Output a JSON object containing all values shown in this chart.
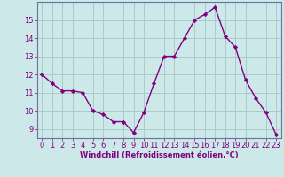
{
  "hours": [
    0,
    1,
    2,
    3,
    4,
    5,
    6,
    7,
    8,
    9,
    10,
    11,
    12,
    13,
    14,
    15,
    16,
    17,
    18,
    19,
    20,
    21,
    22,
    23
  ],
  "values": [
    12.0,
    11.5,
    11.1,
    11.1,
    11.0,
    10.0,
    9.8,
    9.4,
    9.4,
    8.8,
    9.9,
    11.5,
    13.0,
    13.0,
    14.0,
    15.0,
    15.3,
    15.7,
    14.1,
    13.5,
    11.7,
    10.7,
    9.9,
    8.7
  ],
  "line_color": "#800080",
  "marker": "D",
  "markersize": 2.2,
  "linewidth": 1.0,
  "bg_color": "#cce8e8",
  "grid_color": "#aacaca",
  "xlabel": "Windchill (Refroidissement éolien,°C)",
  "xlabel_fontsize": 6,
  "tick_fontsize": 6,
  "ylim": [
    8.5,
    16.0
  ],
  "yticks": [
    9,
    10,
    11,
    12,
    13,
    14,
    15
  ],
  "xlim": [
    -0.5,
    23.5
  ],
  "spine_color": "#7070a0",
  "axis_label_color": "#800080",
  "tick_color": "#800080"
}
